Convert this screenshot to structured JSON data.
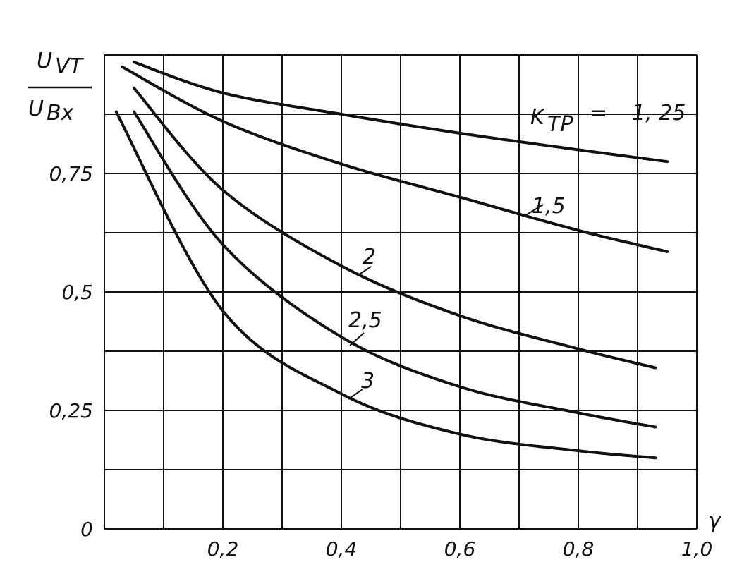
{
  "chart_data": {
    "type": "line",
    "title": "",
    "xlabel": "γ",
    "ylabel": {
      "numerator": "U",
      "numerator_sub": "VT",
      "denominator": "U",
      "denominator_sub": "Bx"
    },
    "xlim": [
      0,
      1.0
    ],
    "ylim": [
      0,
      1.0
    ],
    "x_ticks": [
      {
        "value": 0.2,
        "label": "0,2"
      },
      {
        "value": 0.4,
        "label": "0,4"
      },
      {
        "value": 0.6,
        "label": "0,6"
      },
      {
        "value": 0.8,
        "label": "0,8"
      },
      {
        "value": 1.0,
        "label": "1,0"
      }
    ],
    "y_ticks": [
      {
        "value": 0,
        "label": "0"
      },
      {
        "value": 0.25,
        "label": "0,25"
      },
      {
        "value": 0.5,
        "label": "0,5"
      },
      {
        "value": 0.75,
        "label": "0,75"
      }
    ],
    "x_grid": [
      0.1,
      0.2,
      0.3,
      0.4,
      0.5,
      0.6,
      0.7,
      0.8,
      0.9,
      1.0
    ],
    "y_grid": [
      0.125,
      0.25,
      0.375,
      0.5,
      0.625,
      0.75,
      0.875,
      1.0
    ],
    "grid": true,
    "series_label_prefix": "K",
    "series_label_sub": "TP",
    "series": [
      {
        "name": "1, 25",
        "x": [
          0.05,
          0.2,
          0.4,
          0.6,
          0.8,
          0.95
        ],
        "y": [
          0.985,
          0.92,
          0.875,
          0.835,
          0.8,
          0.775
        ]
      },
      {
        "name": "1,5",
        "x": [
          0.03,
          0.2,
          0.4,
          0.6,
          0.8,
          0.95
        ],
        "y": [
          0.975,
          0.86,
          0.77,
          0.7,
          0.63,
          0.585
        ]
      },
      {
        "name": "2",
        "x": [
          0.05,
          0.2,
          0.4,
          0.6,
          0.8,
          0.93
        ],
        "y": [
          0.93,
          0.715,
          0.555,
          0.45,
          0.38,
          0.34
        ]
      },
      {
        "name": "2,5",
        "x": [
          0.05,
          0.2,
          0.4,
          0.6,
          0.8,
          0.93
        ],
        "y": [
          0.88,
          0.6,
          0.405,
          0.3,
          0.245,
          0.215
        ]
      },
      {
        "name": "3",
        "x": [
          0.02,
          0.2,
          0.4,
          0.6,
          0.8,
          0.93
        ],
        "y": [
          0.88,
          0.46,
          0.285,
          0.2,
          0.165,
          0.15
        ]
      }
    ]
  }
}
